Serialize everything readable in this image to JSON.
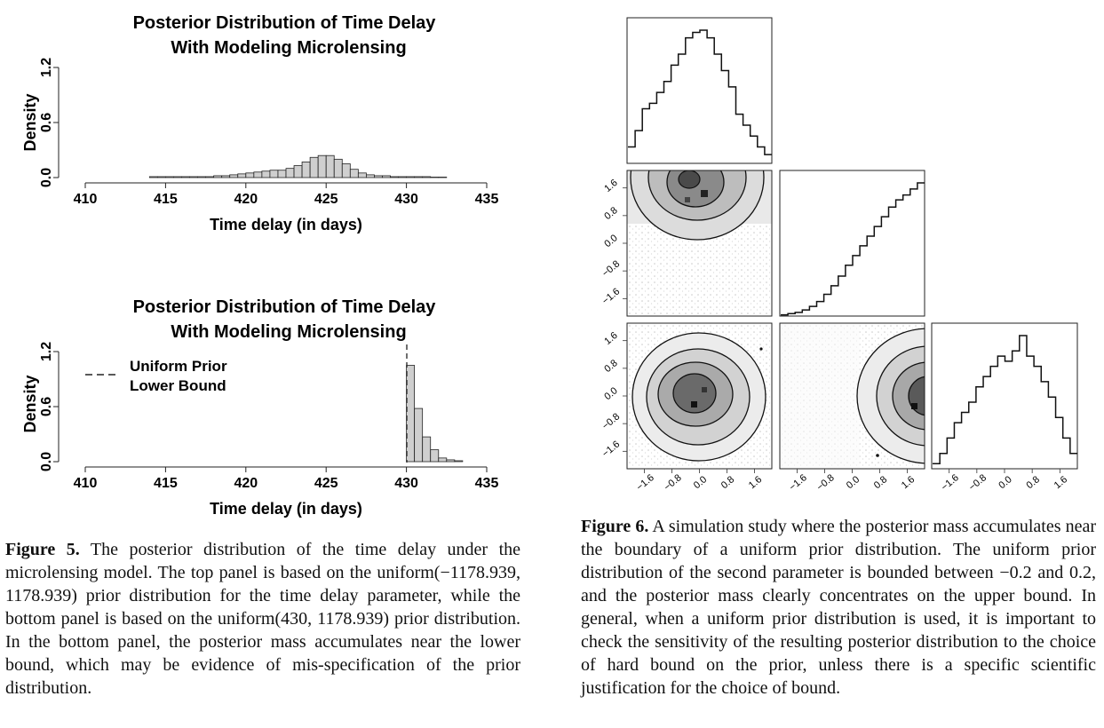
{
  "fig5": {
    "top": {
      "title_line1": "Posterior Distribution of Time Delay",
      "title_line2": "With Modeling Microlensing",
      "ylabel": "Density",
      "xlabel": "Time delay (in days)",
      "xticks": [
        "410",
        "415",
        "420",
        "425",
        "430",
        "435"
      ],
      "yticks": [
        "0.0",
        "0.6",
        "1.2"
      ]
    },
    "bottom": {
      "title_line1": "Posterior Distribution of Time Delay",
      "title_line2": "With Modeling Microlensing",
      "ylabel": "Density",
      "xlabel": "Time delay (in days)",
      "xticks": [
        "410",
        "415",
        "420",
        "425",
        "430",
        "435"
      ],
      "yticks": [
        "0.0",
        "0.6",
        "1.2"
      ],
      "legend_line1": "Uniform Prior",
      "legend_line2": "Lower Bound"
    },
    "caption_label": "Figure 5.",
    "caption_text": "The posterior distribution of the time delay under the microlensing model. The top panel is based on the uniform(−1178.939, 1178.939) prior distribution for the time delay parameter, while the bottom panel is based on the uniform(430, 1178.939) prior distribution. In the bottom panel, the posterior mass accumulates near the lower bound, which may be evidence of mis-specification of the prior distribution."
  },
  "fig6": {
    "ticks": [
      "−1.6",
      "−0.8",
      "0.0",
      "0.8",
      "1.6"
    ],
    "caption_label": "Figure 6.",
    "caption_text": "A simulation study where the posterior mass accumulates near the boundary of a uniform prior distribution. The uniform prior distribution of the second parameter is bounded between −0.2 and 0.2, and the posterior mass clearly concentrates on the upper bound. In general, when a uniform prior distribution is used, it is important to check the sensitivity of the resulting posterior distribution to the choice of hard bound on the prior, unless there is a specific scientific justification for the choice of bound."
  },
  "chart_data": [
    {
      "type": "bar",
      "title": "Posterior Distribution of Time Delay With Modeling Microlensing",
      "xlabel": "Time delay (in days)",
      "ylabel": "Density",
      "xlim": [
        410,
        435
      ],
      "ylim": [
        0,
        1.2
      ],
      "bin_width": 0.5,
      "bin_starts": [
        414,
        414.5,
        415,
        415.5,
        416,
        416.5,
        417,
        417.5,
        418,
        418.5,
        419,
        419.5,
        420,
        420.5,
        421,
        421.5,
        422,
        422.5,
        423,
        423.5,
        424,
        424.5,
        425,
        425.5,
        426,
        426.5,
        427,
        427.5,
        428,
        428.5,
        429,
        429.5,
        430,
        430.5,
        431,
        431.5,
        432
      ],
      "values": [
        0.01,
        0.01,
        0.01,
        0.01,
        0.01,
        0.01,
        0.01,
        0.01,
        0.02,
        0.02,
        0.03,
        0.04,
        0.05,
        0.06,
        0.07,
        0.08,
        0.08,
        0.1,
        0.13,
        0.17,
        0.22,
        0.24,
        0.24,
        0.2,
        0.15,
        0.09,
        0.05,
        0.03,
        0.02,
        0.02,
        0.01,
        0.01,
        0.01,
        0.01,
        0.01,
        0.005,
        0.005
      ]
    },
    {
      "type": "bar",
      "title": "Posterior Distribution of Time Delay With Modeling Microlensing",
      "xlabel": "Time delay (in days)",
      "ylabel": "Density",
      "xlim": [
        410,
        435
      ],
      "ylim": [
        0,
        1.2
      ],
      "bin_width": 0.5,
      "bin_starts": [
        430,
        430.5,
        431,
        431.5,
        432,
        432.5,
        433
      ],
      "values": [
        1.05,
        0.58,
        0.27,
        0.13,
        0.04,
        0.02,
        0.01
      ],
      "reference_line_x": 430,
      "legend": [
        "Uniform Prior Lower Bound"
      ]
    },
    {
      "type": "histogram",
      "panel": "parameter 1 marginal",
      "bin_edges_start": -2.0,
      "bin_width": 0.2,
      "values": [
        0.15,
        0.3,
        0.5,
        0.55,
        0.65,
        0.75,
        0.9,
        1.0,
        1.15,
        1.2,
        1.22,
        1.15,
        1.0,
        0.85,
        0.7,
        0.45,
        0.35,
        0.25,
        0.15,
        0.08
      ]
    },
    {
      "type": "histogram",
      "panel": "parameter 2 marginal",
      "bin_edges_start": -0.2,
      "bin_width": 0.02,
      "values": [
        0.01,
        0.02,
        0.03,
        0.05,
        0.08,
        0.12,
        0.18,
        0.25,
        0.33,
        0.42,
        0.5,
        0.58,
        0.66,
        0.74,
        0.82,
        0.9,
        0.96,
        1.0,
        1.05,
        1.1
      ]
    },
    {
      "type": "histogram",
      "panel": "parameter 3 marginal",
      "bin_edges_start": -2.0,
      "bin_width": 0.2,
      "values": [
        0.05,
        0.15,
        0.3,
        0.45,
        0.55,
        0.65,
        0.8,
        0.9,
        1.0,
        1.1,
        1.05,
        1.15,
        1.3,
        1.1,
        1.0,
        0.85,
        0.7,
        0.5,
        0.3,
        0.15
      ]
    }
  ]
}
